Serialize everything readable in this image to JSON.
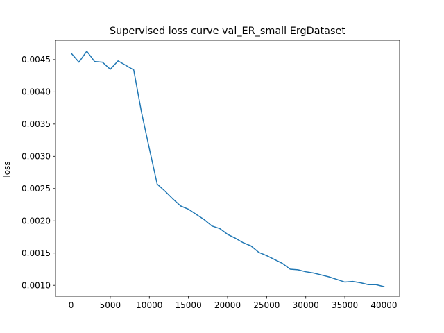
{
  "chart_data": {
    "type": "line",
    "title": "Supervised loss curve val_ER_small ErgDataset",
    "xlabel": "",
    "ylabel": "loss",
    "xlim": [
      -2000,
      42000
    ],
    "ylim": [
      0.00083,
      0.0048
    ],
    "x_ticks": [
      0,
      5000,
      10000,
      15000,
      20000,
      25000,
      30000,
      35000,
      40000
    ],
    "y_ticks": [
      0.001,
      0.0015,
      0.002,
      0.0025,
      0.003,
      0.0035,
      0.004,
      0.0045
    ],
    "x_tick_labels": [
      "0",
      "5000",
      "10000",
      "15000",
      "20000",
      "25000",
      "30000",
      "35000",
      "40000"
    ],
    "y_tick_labels": [
      "0.0010",
      "0.0015",
      "0.0020",
      "0.0025",
      "0.0030",
      "0.0035",
      "0.0040",
      "0.0045"
    ],
    "grid": false,
    "series": [
      {
        "color": "#1f77b4",
        "x": [
          0,
          1000,
          2000,
          3000,
          4000,
          5000,
          6000,
          7000,
          8000,
          9000,
          10000,
          11000,
          12000,
          13000,
          14000,
          15000,
          16000,
          17000,
          18000,
          19000,
          20000,
          21000,
          22000,
          23000,
          24000,
          25000,
          26000,
          27000,
          28000,
          29000,
          30000,
          31000,
          32000,
          33000,
          34000,
          35000,
          36000,
          37000,
          38000,
          39000,
          40000
        ],
        "y": [
          0.0046,
          0.00446,
          0.00463,
          0.00447,
          0.00446,
          0.00435,
          0.00448,
          0.00441,
          0.00434,
          0.00368,
          0.00312,
          0.00257,
          0.00246,
          0.00234,
          0.00223,
          0.00218,
          0.0021,
          0.00202,
          0.00192,
          0.00188,
          0.00179,
          0.00173,
          0.00166,
          0.00161,
          0.00151,
          0.00146,
          0.0014,
          0.00134,
          0.00125,
          0.00124,
          0.00121,
          0.00119,
          0.00116,
          0.00113,
          0.00109,
          0.00105,
          0.00106,
          0.00104,
          0.00101,
          0.00101,
          0.00098
        ]
      }
    ]
  }
}
